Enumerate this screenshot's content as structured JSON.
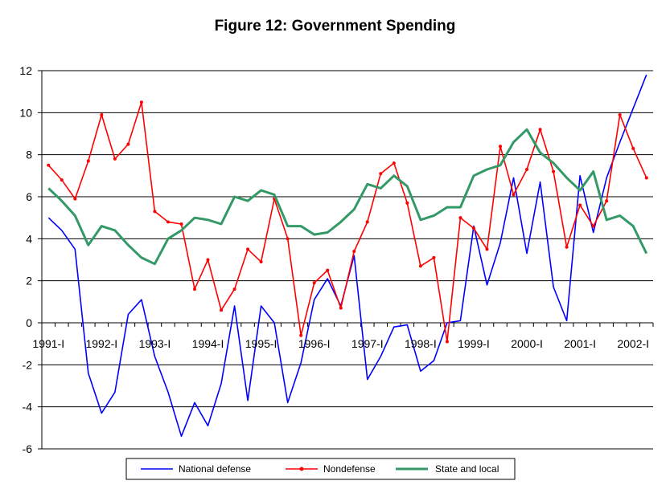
{
  "chart_data": {
    "type": "line",
    "title": "Figure 12: Government Spending",
    "xlabel": "",
    "ylabel": "",
    "ylim": [
      -6,
      12
    ],
    "yticks": [
      "12",
      "10",
      "8",
      "6",
      "4",
      "2",
      "0",
      "-2",
      "-4",
      "-6"
    ],
    "x_tick_labels": [
      "1991-I",
      "1992-I",
      "1993-I",
      "1994-I",
      "1995-I",
      "1996-I",
      "1997-I",
      "1998-I",
      "1999-I",
      "2000-I",
      "2001-I",
      "2002-I"
    ],
    "grid": "horizontal",
    "legend_position": "bottom",
    "colors": {
      "national_defense": "#0000ff",
      "nondefense": "#ff0000",
      "state_local": "#339966"
    },
    "series": [
      {
        "name": "National defense",
        "color": "#0000ff",
        "marker": "none",
        "values": [
          5.0,
          4.4,
          3.5,
          -2.4,
          -4.3,
          -3.3,
          0.4,
          1.1,
          -1.6,
          -3.3,
          -5.4,
          -3.8,
          -4.9,
          -2.9,
          0.8,
          -3.7,
          0.8,
          0.0,
          -3.8,
          -1.9,
          1.1,
          2.1,
          0.8,
          3.2,
          -2.7,
          -1.6,
          -0.2,
          -0.1,
          -2.3,
          -1.8,
          0.0,
          0.1,
          4.6,
          1.8,
          3.8,
          6.9,
          3.3,
          6.7,
          1.7,
          0.1,
          7.0,
          4.3,
          6.9,
          8.6,
          10.2,
          11.8
        ]
      },
      {
        "name": "Nondefense",
        "color": "#ff0000",
        "marker": "dot",
        "values": [
          7.5,
          6.8,
          5.9,
          7.7,
          9.9,
          7.8,
          8.5,
          10.5,
          5.3,
          4.8,
          4.7,
          1.6,
          3.0,
          0.6,
          1.6,
          3.5,
          2.9,
          5.9,
          4.0,
          -0.6,
          1.9,
          2.5,
          0.7,
          3.4,
          4.8,
          7.1,
          7.6,
          5.7,
          2.7,
          3.1,
          -0.9,
          5.0,
          4.5,
          3.5,
          8.4,
          6.1,
          7.3,
          9.2,
          7.2,
          3.6,
          5.6,
          4.6,
          5.8,
          9.9,
          8.3,
          6.9
        ]
      },
      {
        "name": "State and local",
        "color": "#339966",
        "marker": "none",
        "values": [
          6.4,
          5.8,
          5.1,
          3.7,
          4.6,
          4.4,
          3.7,
          3.1,
          2.8,
          4.0,
          4.4,
          5.0,
          4.9,
          4.7,
          6.0,
          5.8,
          6.3,
          6.1,
          4.6,
          4.6,
          4.2,
          4.3,
          4.8,
          5.4,
          6.6,
          6.4,
          7.0,
          6.5,
          4.9,
          5.1,
          5.5,
          5.5,
          7.0,
          7.3,
          7.5,
          8.6,
          9.2,
          8.1,
          7.6,
          6.9,
          6.3,
          7.2,
          4.9,
          5.1,
          4.6,
          3.3
        ]
      }
    ]
  }
}
